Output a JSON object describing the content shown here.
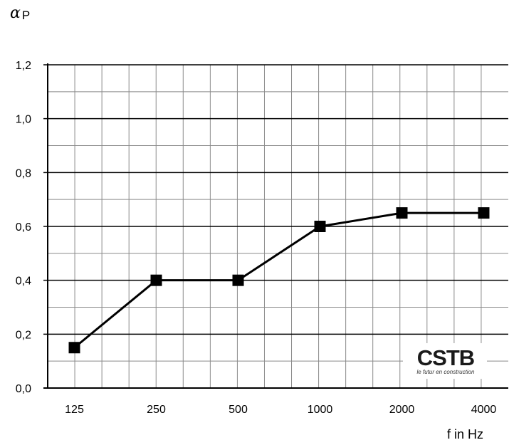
{
  "chart_data": {
    "type": "line",
    "categories": [
      "125",
      "250",
      "500",
      "1000",
      "2000",
      "4000"
    ],
    "values": [
      0.15,
      0.4,
      0.4,
      0.6,
      0.65,
      0.65
    ],
    "ylabel_symbol": "α",
    "ylabel_sub": "P",
    "xlabel": "f in Hz",
    "ylim": [
      0,
      1.2
    ],
    "yticks": [
      "0,0",
      "0,2",
      "0,4",
      "0,6",
      "0,8",
      "1,0",
      "1,2"
    ],
    "grid": true,
    "marker": "square",
    "line_color": "#000000"
  },
  "logo": {
    "name": "CSTB",
    "tagline": "le futur en construction"
  }
}
